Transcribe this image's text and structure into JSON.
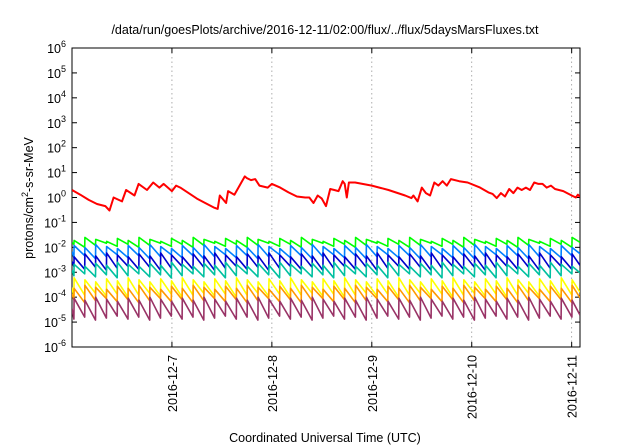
{
  "chart_data": {
    "type": "line",
    "title": "/data/run/goesPlots/archive/2016-12-11/02:00/flux/../flux/5daysMarsFluxes.txt",
    "xlabel": "Coordinated Universal Time (UTC)",
    "ylabel": "protons/cm²-s-sr-MeV",
    "ylabel_parts": {
      "pre": "protons/cm",
      "sup": "2",
      "post": "-s-sr-MeV"
    },
    "y_scale": "log",
    "ylim": [
      1e-06,
      1000000.0
    ],
    "xlim": [
      "2016-12-06 00:00",
      "2016-12-11 02:00"
    ],
    "y_ticks": [
      {
        "base": "10",
        "exp": "-6",
        "value": 1e-06
      },
      {
        "base": "10",
        "exp": "-5",
        "value": 1e-05
      },
      {
        "base": "10",
        "exp": "-4",
        "value": 0.0001
      },
      {
        "base": "10",
        "exp": "-3",
        "value": 0.001
      },
      {
        "base": "10",
        "exp": "-2",
        "value": 0.01
      },
      {
        "base": "10",
        "exp": "-1",
        "value": 0.1
      },
      {
        "base": "10",
        "exp": "0",
        "value": 1
      },
      {
        "base": "10",
        "exp": "1",
        "value": 10
      },
      {
        "base": "10",
        "exp": "2",
        "value": 100
      },
      {
        "base": "10",
        "exp": "3",
        "value": 1000
      },
      {
        "base": "10",
        "exp": "4",
        "value": 10000
      },
      {
        "base": "10",
        "exp": "5",
        "value": 100000
      },
      {
        "base": "10",
        "exp": "6",
        "value": 1000000
      }
    ],
    "x_ticks": [
      {
        "label": "2016-12-7",
        "value": "2016-12-07 00:00"
      },
      {
        "label": "2016-12-8",
        "value": "2016-12-08 00:00"
      },
      {
        "label": "2016-12-9",
        "value": "2016-12-09 00:00"
      },
      {
        "label": "2016-12-10",
        "value": "2016-12-10 00:00"
      },
      {
        "label": "2016-12-11",
        "value": "2016-12-11 00:00"
      }
    ],
    "grid": true,
    "legend": "none",
    "series": [
      {
        "color": "#ff0000",
        "points": [
          [
            "2016-12-06 00:00",
            2.0
          ],
          [
            "2016-12-06 02:00",
            1.3
          ],
          [
            "2016-12-06 04:00",
            0.8
          ],
          [
            "2016-12-06 06:00",
            0.55
          ],
          [
            "2016-12-06 08:00",
            0.45
          ],
          [
            "2016-12-06 09:00",
            0.3
          ],
          [
            "2016-12-06 10:00",
            1.0
          ],
          [
            "2016-12-06 12:00",
            0.7
          ],
          [
            "2016-12-06 13:00",
            2.0
          ],
          [
            "2016-12-06 15:00",
            1.2
          ],
          [
            "2016-12-06 16:00",
            3.5
          ],
          [
            "2016-12-06 18:00",
            2.0
          ],
          [
            "2016-12-06 19:30",
            4.0
          ],
          [
            "2016-12-06 21:00",
            2.5
          ],
          [
            "2016-12-06 22:00",
            3.5
          ],
          [
            "2016-12-07 00:00",
            1.8
          ],
          [
            "2016-12-07 01:00",
            3.0
          ],
          [
            "2016-12-07 02:00",
            2.5
          ],
          [
            "2016-12-07 04:00",
            1.5
          ],
          [
            "2016-12-07 06:00",
            0.9
          ],
          [
            "2016-12-07 08:00",
            0.6
          ],
          [
            "2016-12-07 10:00",
            0.4
          ],
          [
            "2016-12-07 11:00",
            0.35
          ],
          [
            "2016-12-07 11:30",
            1.2
          ],
          [
            "2016-12-07 13:00",
            0.6
          ],
          [
            "2016-12-07 13:30",
            1.8
          ],
          [
            "2016-12-07 15:00",
            1.3
          ],
          [
            "2016-12-07 17:30",
            7.0
          ],
          [
            "2016-12-07 18:00",
            6.0
          ],
          [
            "2016-12-07 19:00",
            5.0
          ],
          [
            "2016-12-07 20:00",
            5.5
          ],
          [
            "2016-12-07 21:00",
            3.0
          ],
          [
            "2016-12-07 23:00",
            2.5
          ],
          [
            "2016-12-08 00:00",
            3.5
          ],
          [
            "2016-12-08 02:00",
            2.5
          ],
          [
            "2016-12-08 04:00",
            1.6
          ],
          [
            "2016-12-08 06:00",
            1.1
          ],
          [
            "2016-12-08 08:00",
            1.0
          ],
          [
            "2016-12-08 09:00",
            1.0
          ],
          [
            "2016-12-08 10:00",
            0.6
          ],
          [
            "2016-12-08 11:00",
            1.2
          ],
          [
            "2016-12-08 12:00",
            0.9
          ],
          [
            "2016-12-08 13:00",
            0.45
          ],
          [
            "2016-12-08 14:00",
            2.2
          ],
          [
            "2016-12-08 15:00",
            2.0
          ],
          [
            "2016-12-08 16:00",
            1.8
          ],
          [
            "2016-12-08 17:00",
            4.5
          ],
          [
            "2016-12-08 17:30",
            3.5
          ],
          [
            "2016-12-08 18:00",
            1.0
          ],
          [
            "2016-12-08 18:30",
            4.0
          ],
          [
            "2016-12-08 20:00",
            4.0
          ],
          [
            "2016-12-09 00:00",
            3.0
          ],
          [
            "2016-12-09 04:00",
            2.0
          ],
          [
            "2016-12-09 08:00",
            1.2
          ],
          [
            "2016-12-09 09:30",
            0.95
          ],
          [
            "2016-12-09 10:00",
            1.2
          ],
          [
            "2016-12-09 11:00",
            0.7
          ],
          [
            "2016-12-09 12:00",
            2.5
          ],
          [
            "2016-12-09 13:00",
            1.5
          ],
          [
            "2016-12-09 14:00",
            1.2
          ],
          [
            "2016-12-09 15:00",
            4.0
          ],
          [
            "2016-12-09 16:00",
            3.0
          ],
          [
            "2016-12-09 17:00",
            4.5
          ],
          [
            "2016-12-09 18:00",
            3.0
          ],
          [
            "2016-12-09 19:00",
            5.5
          ],
          [
            "2016-12-09 21:00",
            4.5
          ],
          [
            "2016-12-09 23:00",
            4.0
          ],
          [
            "2016-12-10 02:00",
            2.5
          ],
          [
            "2016-12-10 04:00",
            1.6
          ],
          [
            "2016-12-10 05:00",
            1.4
          ],
          [
            "2016-12-10 06:00",
            0.95
          ],
          [
            "2016-12-10 07:00",
            1.5
          ],
          [
            "2016-12-10 08:00",
            1.1
          ],
          [
            "2016-12-10 09:00",
            2.2
          ],
          [
            "2016-12-10 10:00",
            1.5
          ],
          [
            "2016-12-10 11:00",
            2.5
          ],
          [
            "2016-12-10 12:00",
            2.0
          ],
          [
            "2016-12-10 13:00",
            2.5
          ],
          [
            "2016-12-10 14:00",
            2.0
          ],
          [
            "2016-12-10 15:00",
            4.0
          ],
          [
            "2016-12-10 16:00",
            3.5
          ],
          [
            "2016-12-10 17:00",
            3.5
          ],
          [
            "2016-12-10 18:00",
            2.5
          ],
          [
            "2016-12-10 19:00",
            3.0
          ],
          [
            "2016-12-10 20:00",
            2.2
          ],
          [
            "2016-12-10 22:00",
            1.8
          ],
          [
            "2016-12-11 00:00",
            1.2
          ],
          [
            "2016-12-11 01:00",
            1.0
          ],
          [
            "2016-12-11 01:30",
            1.3
          ],
          [
            "2016-12-11 02:00",
            1.05
          ]
        ]
      },
      {
        "color": "#00ff00",
        "pattern": "sawtooth",
        "peak": 0.025,
        "trough": 0.01
      },
      {
        "color": "#0080ff",
        "pattern": "sawtooth",
        "peak": 0.013,
        "trough": 0.0035
      },
      {
        "color": "#0000cc",
        "pattern": "sawtooth",
        "peak": 0.006,
        "trough": 0.0012
      },
      {
        "color": "#00c0a0",
        "pattern": "sawtooth",
        "peak": 0.0025,
        "trough": 0.0006
      },
      {
        "color": "#ffff00",
        "pattern": "sawtooth",
        "peak": 0.0006,
        "trough": 0.0001
      },
      {
        "color": "#ff9900",
        "pattern": "sawtooth",
        "peak": 0.0003,
        "trough": 6e-05
      },
      {
        "color": "#993366",
        "pattern": "sawtooth",
        "peak": 0.0001,
        "trough": 1.2e-05
      }
    ]
  }
}
